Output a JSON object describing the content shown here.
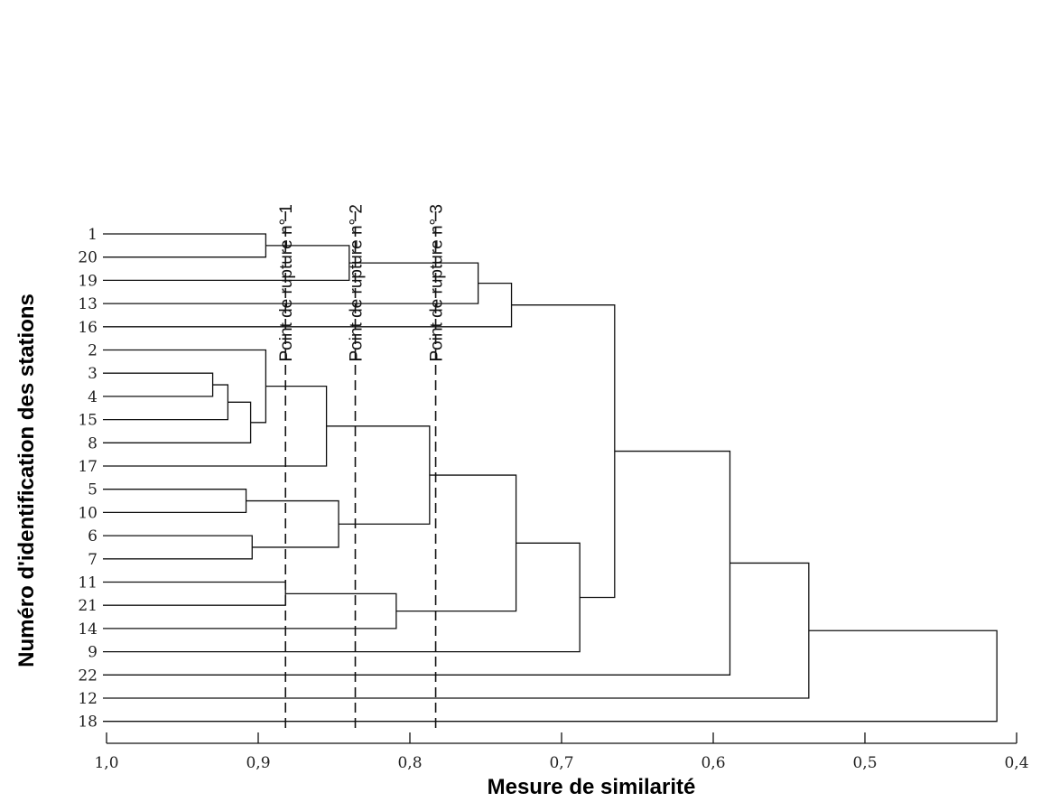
{
  "chart_data": {
    "type": "dendrogram",
    "xlabel": "Mesure de similarité",
    "ylabel": "Numéro d'identification des stations",
    "xlim": [
      1.0,
      0.4
    ],
    "xticks": [
      1.0,
      0.9,
      0.8,
      0.7,
      0.6,
      0.5,
      0.4
    ],
    "xtick_labels": [
      "1,0",
      "0,9",
      "0,8",
      "0,7",
      "0,6",
      "0,5",
      "0,4"
    ],
    "leaves": [
      "1",
      "20",
      "19",
      "13",
      "16",
      "2",
      "3",
      "4",
      "15",
      "8",
      "17",
      "5",
      "10",
      "6",
      "7",
      "11",
      "21",
      "14",
      "9",
      "22",
      "12",
      "18"
    ],
    "merges": [
      {
        "id": "m1",
        "a": "1",
        "b": "20",
        "similarity": 0.895
      },
      {
        "id": "m2",
        "a": "m1",
        "b": "19",
        "similarity": 0.84
      },
      {
        "id": "m3",
        "a": "m2",
        "b": "13",
        "similarity": 0.755
      },
      {
        "id": "m4",
        "a": "m3",
        "b": "16",
        "similarity": 0.733
      },
      {
        "id": "m5",
        "a": "3",
        "b": "4",
        "similarity": 0.93
      },
      {
        "id": "m6",
        "a": "m5",
        "b": "15",
        "similarity": 0.92
      },
      {
        "id": "m7",
        "a": "m6",
        "b": "8",
        "similarity": 0.905
      },
      {
        "id": "m8",
        "a": "2",
        "b": "m7",
        "similarity": 0.895
      },
      {
        "id": "m9",
        "a": "m8",
        "b": "17",
        "similarity": 0.855
      },
      {
        "id": "m10",
        "a": "5",
        "b": "10",
        "similarity": 0.908
      },
      {
        "id": "m11",
        "a": "6",
        "b": "7",
        "similarity": 0.904
      },
      {
        "id": "m12",
        "a": "m10",
        "b": "m11",
        "similarity": 0.847
      },
      {
        "id": "m13",
        "a": "m9",
        "b": "m12",
        "similarity": 0.787
      },
      {
        "id": "m14",
        "a": "11",
        "b": "21",
        "similarity": 0.882
      },
      {
        "id": "m15",
        "a": "m14",
        "b": "14",
        "similarity": 0.809
      },
      {
        "id": "m16",
        "a": "m13",
        "b": "m15",
        "similarity": 0.73
      },
      {
        "id": "m17",
        "a": "m16",
        "b": "9",
        "similarity": 0.688
      },
      {
        "id": "m18",
        "a": "m4",
        "b": "m17",
        "similarity": 0.665
      },
      {
        "id": "m19",
        "a": "m18",
        "b": "22",
        "similarity": 0.589
      },
      {
        "id": "m20",
        "a": "m19",
        "b": "12",
        "similarity": 0.537
      },
      {
        "id": "m21",
        "a": "m20",
        "b": "18",
        "similarity": 0.413
      }
    ],
    "cut_points": [
      {
        "label": "Point de rupture n° 1",
        "similarity": 0.882
      },
      {
        "label": "Point de rupture n° 2",
        "similarity": 0.836
      },
      {
        "label": "Point de rupture n° 3",
        "similarity": 0.783
      }
    ]
  }
}
